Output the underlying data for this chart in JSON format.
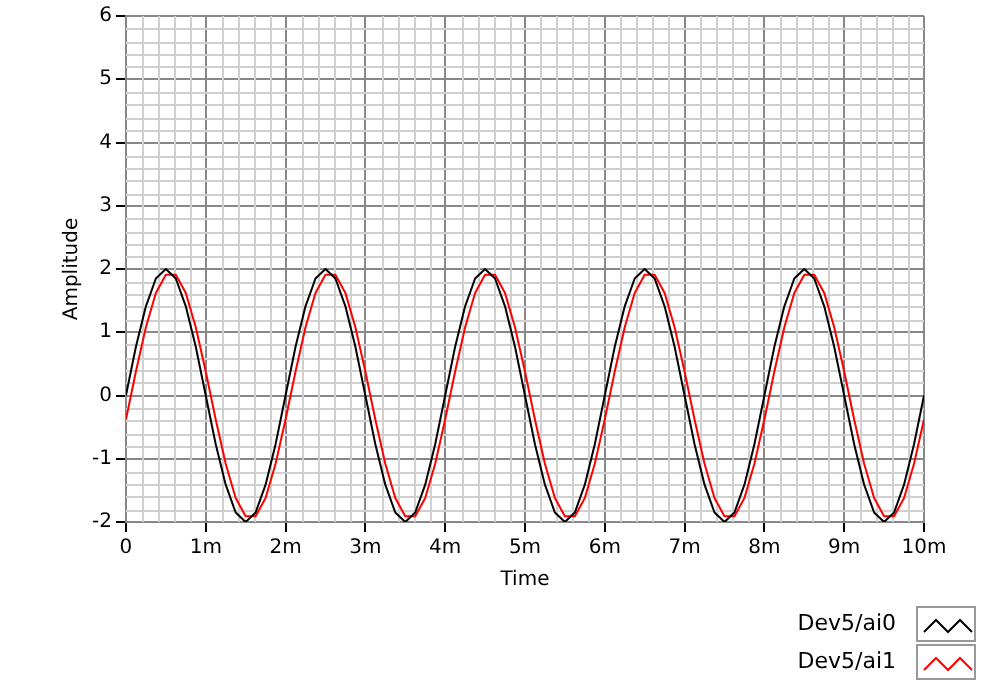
{
  "chart_data": {
    "type": "line",
    "xlabel": "Time",
    "ylabel": "Amplitude",
    "x": [
      0,
      0.125,
      0.25,
      0.375,
      0.5,
      0.625,
      0.75,
      0.875,
      1,
      1.125,
      1.25,
      1.375,
      1.5,
      1.625,
      1.75,
      1.875,
      2,
      2.125,
      2.25,
      2.375,
      2.5,
      2.625,
      2.75,
      2.875,
      3,
      3.125,
      3.25,
      3.375,
      3.5,
      3.625,
      3.75,
      3.875,
      4,
      4.125,
      4.25,
      4.375,
      4.5,
      4.625,
      4.75,
      4.875,
      5,
      5.125,
      5.25,
      5.375,
      5.5,
      5.625,
      5.75,
      5.875,
      6,
      6.125,
      6.25,
      6.375,
      6.5,
      6.625,
      6.75,
      6.875,
      7,
      7.125,
      7.25,
      7.375,
      7.5,
      7.625,
      7.75,
      7.875,
      8,
      8.125,
      8.25,
      8.375,
      8.5,
      8.625,
      8.75,
      8.875,
      9,
      9.125,
      9.25,
      9.375,
      9.5,
      9.625,
      9.75,
      9.875,
      10
    ],
    "series": [
      {
        "name": "Dev5/ai0",
        "color": "#000000",
        "values": [
          0,
          0.77,
          1.41,
          1.85,
          2,
          1.85,
          1.41,
          0.77,
          0,
          -0.77,
          -1.41,
          -1.85,
          -2,
          -1.85,
          -1.41,
          -0.77,
          0,
          0.77,
          1.41,
          1.85,
          2,
          1.85,
          1.41,
          0.77,
          0,
          -0.77,
          -1.41,
          -1.85,
          -2,
          -1.85,
          -1.41,
          -0.77,
          0,
          0.77,
          1.41,
          1.85,
          2,
          1.85,
          1.41,
          0.77,
          0,
          -0.77,
          -1.41,
          -1.85,
          -2,
          -1.85,
          -1.41,
          -0.77,
          0,
          0.77,
          1.41,
          1.85,
          2,
          1.85,
          1.41,
          0.77,
          0,
          -0.77,
          -1.41,
          -1.85,
          -2,
          -1.85,
          -1.41,
          -0.77,
          0,
          0.77,
          1.41,
          1.85,
          2,
          1.85,
          1.41,
          0.77,
          0,
          -0.77,
          -1.41,
          -1.85,
          -2,
          -1.85,
          -1.41,
          -0.77,
          0
        ]
      },
      {
        "name": "Dev5/ai1",
        "color": "#ff0000",
        "values": [
          -0.38,
          0.38,
          1.08,
          1.62,
          1.91,
          1.91,
          1.62,
          1.08,
          0.38,
          -0.38,
          -1.08,
          -1.62,
          -1.91,
          -1.91,
          -1.62,
          -1.08,
          -0.38,
          0.38,
          1.08,
          1.62,
          1.91,
          1.91,
          1.62,
          1.08,
          0.38,
          -0.38,
          -1.08,
          -1.62,
          -1.91,
          -1.91,
          -1.62,
          -1.08,
          -0.38,
          0.38,
          1.08,
          1.62,
          1.91,
          1.91,
          1.62,
          1.08,
          0.38,
          -0.38,
          -1.08,
          -1.62,
          -1.91,
          -1.91,
          -1.62,
          -1.08,
          -0.38,
          0.38,
          1.08,
          1.62,
          1.91,
          1.91,
          1.62,
          1.08,
          0.38,
          -0.38,
          -1.08,
          -1.62,
          -1.91,
          -1.91,
          -1.62,
          -1.08,
          -0.38,
          0.38,
          1.08,
          1.62,
          1.91,
          1.91,
          1.62,
          1.08,
          0.38,
          -0.38,
          -1.08,
          -1.62,
          -1.91,
          -1.91,
          -1.62,
          -1.08,
          -0.38
        ]
      }
    ],
    "xlim": [
      0,
      10
    ],
    "xticks": [
      0,
      {
        "value": 1,
        "label": "1m"
      },
      {
        "value": 2,
        "label": "2m"
      },
      {
        "value": 3,
        "label": "3m"
      },
      {
        "value": 4,
        "label": "4m"
      },
      {
        "value": 5,
        "label": "5m"
      },
      {
        "value": 6,
        "label": "6m"
      },
      {
        "value": 7,
        "label": "7m"
      },
      {
        "value": 8,
        "label": "8m"
      },
      {
        "value": 9,
        "label": "9m"
      },
      {
        "value": 10,
        "label": "10m"
      }
    ],
    "ylim": [
      -2,
      6
    ],
    "yticks": [
      -2,
      -1,
      0,
      1,
      2,
      3,
      4,
      5,
      6
    ],
    "grid": true,
    "legend": "bottom right",
    "marker": "none",
    "line_style": "solid"
  }
}
